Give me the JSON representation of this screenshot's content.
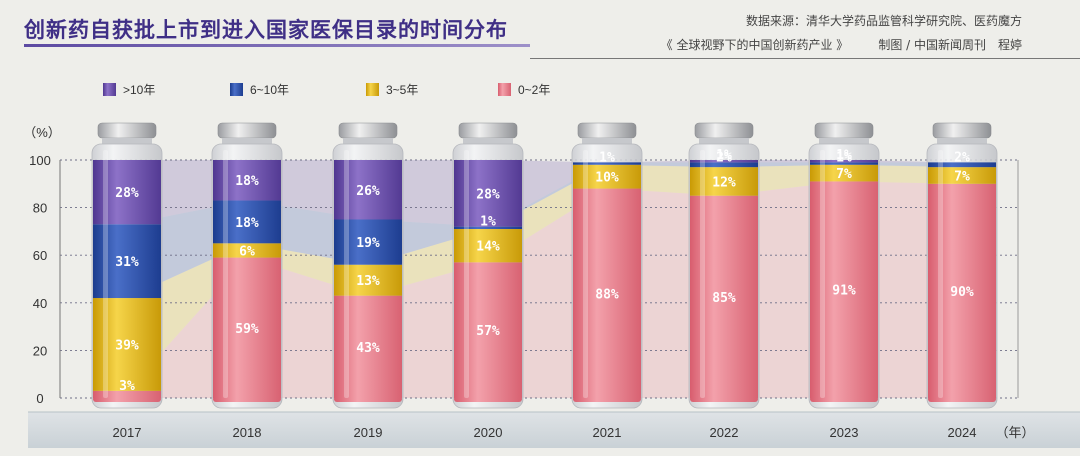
{
  "header": {
    "title": "创新药自获批上市到进入国家医保目录的时间分布",
    "source_line1": "数据来源：清华大学药品监管科学研究院、医药魔方",
    "source_book": "《 全球视野下的中国创新药产业 》",
    "source_credit": "制图 / 中国新闻周刊　程婷"
  },
  "colors": {
    "gt10": "#6a4ea8",
    "y6_10": "#2c4fa8",
    "y3_5": "#e0b91c",
    "y0_2": "#e77d8a"
  },
  "chart_data": {
    "type": "bar",
    "stacked": true,
    "categories": [
      "2017",
      "2018",
      "2019",
      "2020",
      "2021",
      "2022",
      "2023",
      "2024"
    ],
    "series": [
      {
        "name": "0~2年",
        "values": [
          3,
          59,
          43,
          57,
          88,
          85,
          91,
          90
        ],
        "labels": [
          "3%",
          "59%",
          "43%",
          "57%",
          "88%",
          "85%",
          "91%",
          "90%"
        ]
      },
      {
        "name": "3~5年",
        "values": [
          39,
          6,
          13,
          14,
          10,
          12,
          7,
          7
        ],
        "labels": [
          "39%",
          "6%",
          "13%",
          "14%",
          "10%",
          "12%",
          "7%",
          "7%"
        ]
      },
      {
        "name": "6~10年",
        "values": [
          31,
          18,
          19,
          1,
          1,
          2,
          1,
          2
        ],
        "labels": [
          "31%",
          "18%",
          "19%",
          "1%",
          "1%",
          "2%",
          "1%",
          "2%"
        ]
      },
      {
        "name": ">10年",
        "values": [
          28,
          18,
          26,
          28,
          0,
          1,
          1,
          0
        ],
        "labels": [
          "28%",
          "18%",
          "26%",
          "28%",
          "",
          "1%",
          "1%",
          ""
        ]
      }
    ],
    "legend_order": [
      ">10年",
      "6~10年",
      "3~5年",
      "0~2年"
    ],
    "ylabel": "（%）",
    "xunit": "（年）",
    "ylim": [
      0,
      100
    ],
    "yticks": [
      0,
      20,
      40,
      60,
      80,
      100
    ],
    "grid": true,
    "legend_position": "top-left"
  }
}
